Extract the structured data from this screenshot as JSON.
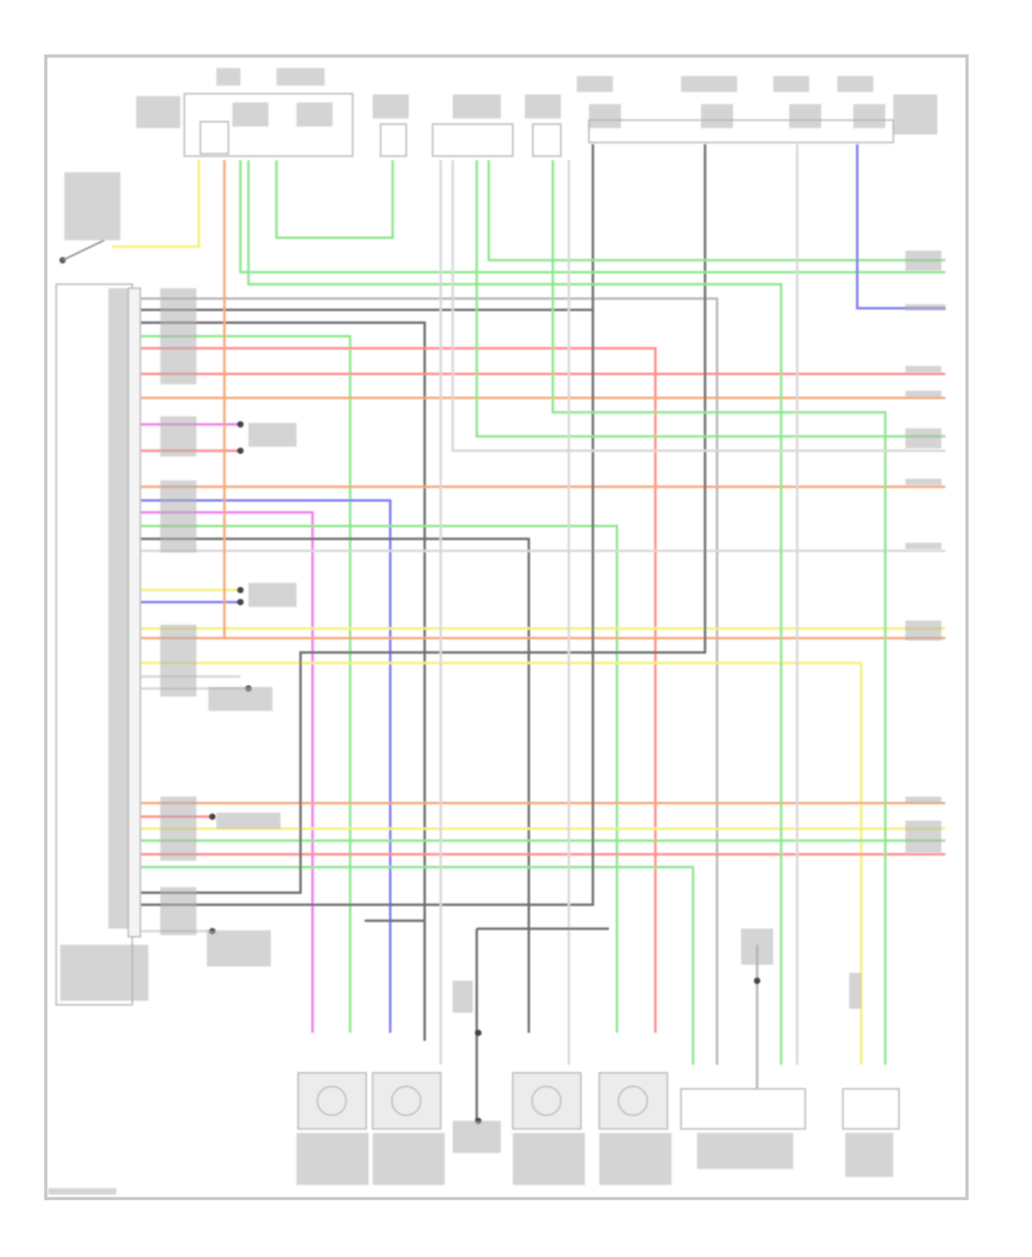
{
  "diagram": {
    "labels_legible": false,
    "colors": {
      "frame": "#c8c8c8",
      "component": "#bdbdbd",
      "label": "#b0b0b0",
      "green": "#8ee68e",
      "red": "#ff8c8c",
      "orange": "#f5a878",
      "yellow": "#f2f27a",
      "blue": "#7c7cf0",
      "magenta": "#f07cf0",
      "darkgray": "#6e6e6e",
      "gray": "#b8b8b8",
      "lightgray": "#d8d8d8",
      "tan": "#f0c080"
    }
  }
}
